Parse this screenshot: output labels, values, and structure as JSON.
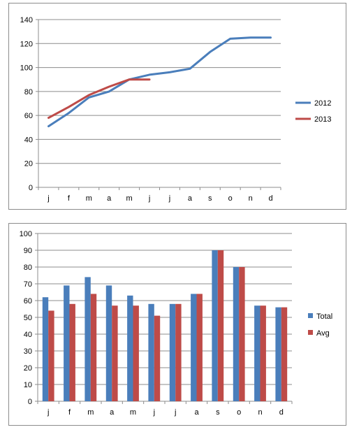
{
  "charts": [
    {
      "type": "line",
      "categories": [
        "j",
        "f",
        "m",
        "a",
        "m",
        "j",
        "j",
        "a",
        "s",
        "o",
        "n",
        "d"
      ],
      "ylim": [
        0,
        140
      ],
      "yticks": [
        0,
        20,
        40,
        60,
        80,
        100,
        120,
        140
      ],
      "grid": true,
      "legend": "right",
      "series": [
        {
          "name": "2012",
          "color": "#4a7ebb",
          "values": [
            51,
            62,
            75,
            80,
            90,
            94,
            96,
            99,
            113,
            124,
            125,
            125
          ]
        },
        {
          "name": "2013",
          "color": "#be4b48",
          "values": [
            58,
            67,
            77,
            84,
            90,
            90
          ]
        }
      ]
    },
    {
      "type": "bar",
      "categories": [
        "j",
        "f",
        "m",
        "a",
        "m",
        "j",
        "j",
        "a",
        "s",
        "o",
        "n",
        "d"
      ],
      "ylim": [
        0,
        100
      ],
      "yticks": [
        0,
        10,
        20,
        30,
        40,
        50,
        60,
        70,
        80,
        90,
        100
      ],
      "grid": true,
      "legend": "right",
      "series": [
        {
          "name": "Total",
          "color": "#4a7ebb",
          "values": [
            62,
            69,
            74,
            69,
            63,
            58,
            58,
            64,
            90,
            80,
            57,
            56
          ]
        },
        {
          "name": "Avg",
          "color": "#be4b48",
          "values": [
            54,
            58,
            64,
            57,
            57,
            51,
            58,
            64,
            90,
            80,
            57,
            56
          ]
        }
      ]
    }
  ]
}
